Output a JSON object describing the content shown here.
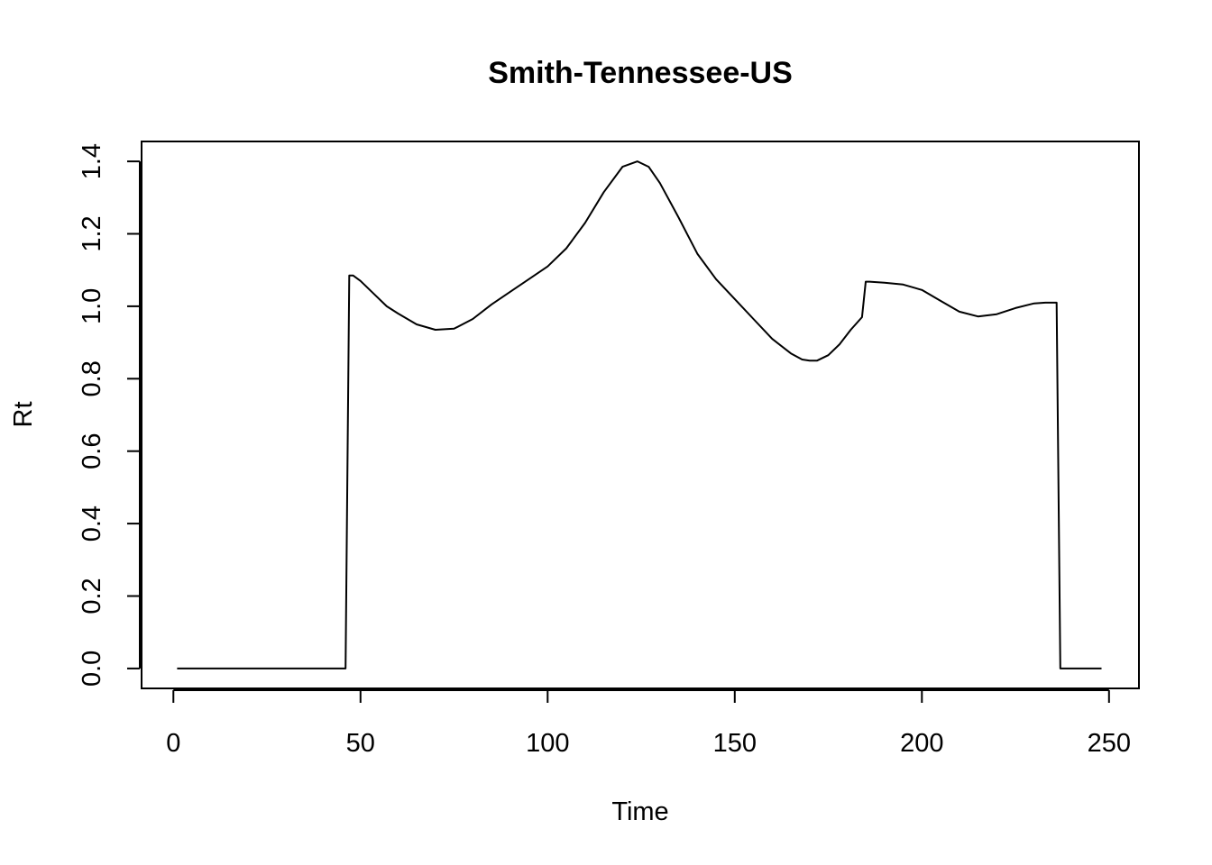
{
  "chart_data": {
    "type": "line",
    "title": "Smith-Tennessee-US",
    "xlabel": "Time",
    "ylabel": "Rt",
    "xlim": [
      -8.5,
      258
    ],
    "ylim": [
      -0.055,
      1.455
    ],
    "x_ticks": [
      0,
      50,
      100,
      150,
      200,
      250
    ],
    "y_ticks": [
      0.0,
      0.2,
      0.4,
      0.6,
      0.8,
      1.0,
      1.2,
      1.4
    ],
    "x_tick_labels": [
      "0",
      "50",
      "100",
      "150",
      "200",
      "250"
    ],
    "y_tick_labels": [
      "0.0",
      "0.2",
      "0.4",
      "0.6",
      "0.8",
      "1.0",
      "1.2",
      "1.4"
    ],
    "grid": false,
    "line_color": "#000000",
    "series": [
      {
        "x": [
          1,
          10,
          20,
          30,
          40,
          46,
          47,
          48,
          50,
          53,
          57,
          60,
          65,
          70,
          75,
          80,
          85,
          90,
          95,
          100,
          105,
          110,
          115,
          120,
          124,
          127,
          130,
          135,
          140,
          145,
          150,
          155,
          160,
          165,
          168,
          170,
          172,
          175,
          178,
          181,
          184,
          185,
          186,
          190,
          195,
          200,
          205,
          210,
          215,
          220,
          225,
          230,
          233,
          236,
          237,
          240,
          245,
          248
        ],
        "y": [
          0,
          0,
          0,
          0,
          0,
          0,
          1.085,
          1.085,
          1.07,
          1.04,
          1.0,
          0.98,
          0.95,
          0.935,
          0.938,
          0.965,
          1.005,
          1.04,
          1.075,
          1.11,
          1.16,
          1.23,
          1.315,
          1.385,
          1.4,
          1.385,
          1.34,
          1.245,
          1.145,
          1.075,
          1.02,
          0.965,
          0.91,
          0.87,
          0.853,
          0.85,
          0.85,
          0.865,
          0.895,
          0.935,
          0.97,
          1.068,
          1.068,
          1.065,
          1.06,
          1.045,
          1.015,
          0.985,
          0.972,
          0.978,
          0.995,
          1.008,
          1.01,
          1.01,
          0,
          0,
          0,
          0
        ]
      }
    ]
  }
}
